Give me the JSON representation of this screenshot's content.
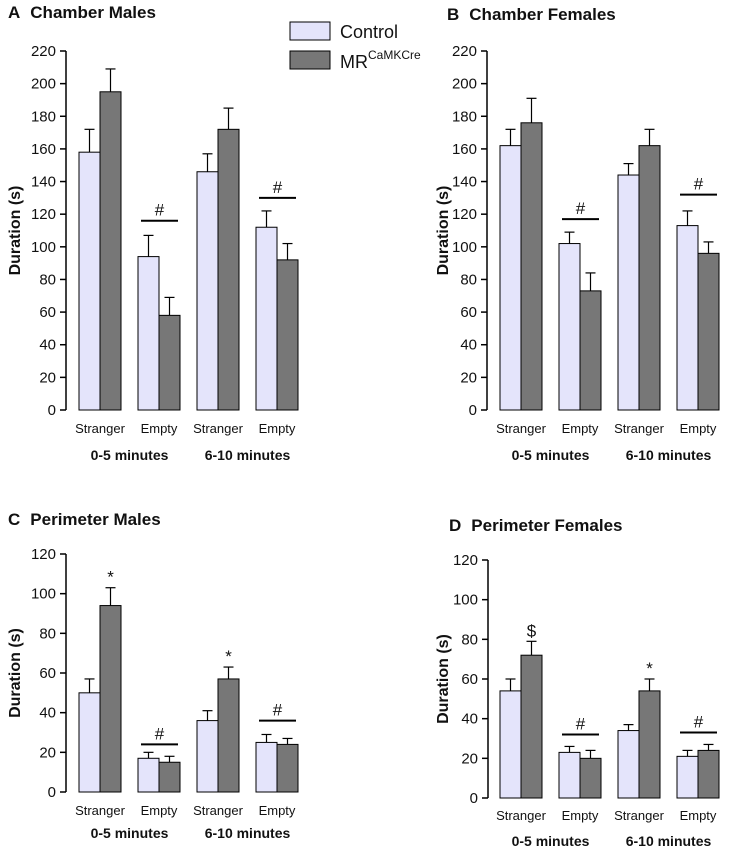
{
  "legend": {
    "control_label": "Control",
    "mr_label_base": "MR",
    "mr_label_sup": "CaMKCre",
    "colors": {
      "control": "#e4e4fb",
      "mr": "#777777"
    }
  },
  "chart_data": [
    {
      "type": "bar",
      "panel_letter": "A",
      "title": "Chamber Males",
      "ylabel": "Duration (s)",
      "ylim": [
        0,
        220
      ],
      "yticks": [
        "0",
        "20",
        "40",
        "60",
        "80",
        "100",
        "120",
        "140",
        "160",
        "180",
        "200",
        "220"
      ],
      "categories": [
        "Stranger",
        "Empty",
        "Stranger",
        "Empty"
      ],
      "groups": [
        "0-5 minutes",
        "6-10 minutes"
      ],
      "series": [
        {
          "name": "Control",
          "values": [
            158,
            94,
            146,
            112
          ],
          "errors": [
            14,
            13,
            11,
            10
          ]
        },
        {
          "name": "MR CaMKCre",
          "values": [
            195,
            58,
            172,
            92
          ],
          "errors": [
            14,
            11,
            13,
            10
          ]
        }
      ],
      "annotations": [
        {
          "type": "line",
          "category": 1,
          "value": 116,
          "label": "#"
        },
        {
          "type": "line",
          "category": 3,
          "value": 130,
          "label": "#"
        }
      ]
    },
    {
      "type": "bar",
      "panel_letter": "B",
      "title": "Chamber Females",
      "ylabel": "Duration (s)",
      "ylim": [
        0,
        220
      ],
      "yticks": [
        "0",
        "20",
        "40",
        "60",
        "80",
        "100",
        "120",
        "140",
        "160",
        "180",
        "200",
        "220"
      ],
      "categories": [
        "Stranger",
        "Empty",
        "Stranger",
        "Empty"
      ],
      "groups": [
        "0-5 minutes",
        "6-10 minutes"
      ],
      "series": [
        {
          "name": "Control",
          "values": [
            162,
            102,
            144,
            113
          ],
          "errors": [
            10,
            7,
            7,
            9
          ]
        },
        {
          "name": "MR CaMKCre",
          "values": [
            176,
            73,
            162,
            96
          ],
          "errors": [
            15,
            11,
            10,
            7
          ]
        }
      ],
      "annotations": [
        {
          "type": "line",
          "category": 1,
          "value": 117,
          "label": "#"
        },
        {
          "type": "line",
          "category": 3,
          "value": 132,
          "label": "#"
        }
      ]
    },
    {
      "type": "bar",
      "panel_letter": "C",
      "title": "Perimeter Males",
      "ylabel": "Duration (s)",
      "ylim": [
        0,
        120
      ],
      "yticks": [
        "0",
        "20",
        "40",
        "60",
        "80",
        "100",
        "120"
      ],
      "categories": [
        "Stranger",
        "Empty",
        "Stranger",
        "Empty"
      ],
      "groups": [
        "0-5 minutes",
        "6-10 minutes"
      ],
      "series": [
        {
          "name": "Control",
          "values": [
            50,
            17,
            36,
            25
          ],
          "errors": [
            7,
            3,
            5,
            4
          ]
        },
        {
          "name": "MR CaMKCre",
          "values": [
            94,
            15,
            57,
            24
          ],
          "errors": [
            9,
            3,
            6,
            3
          ]
        }
      ],
      "annotations": [
        {
          "type": "star",
          "category": 0,
          "series": 1,
          "label": "*"
        },
        {
          "type": "star",
          "category": 2,
          "series": 1,
          "label": "*"
        },
        {
          "type": "line",
          "category": 1,
          "value": 24,
          "label": "#"
        },
        {
          "type": "line",
          "category": 3,
          "value": 36,
          "label": "#"
        }
      ]
    },
    {
      "type": "bar",
      "panel_letter": "D",
      "title": "Perimeter Females",
      "ylabel": "Duration (s)",
      "ylim": [
        0,
        120
      ],
      "yticks": [
        "0",
        "20",
        "40",
        "60",
        "80",
        "100",
        "120"
      ],
      "categories": [
        "Stranger",
        "Empty",
        "Stranger",
        "Empty"
      ],
      "groups": [
        "0-5 minutes",
        "6-10 minutes"
      ],
      "series": [
        {
          "name": "Control",
          "values": [
            54,
            23,
            34,
            21
          ],
          "errors": [
            6,
            3,
            3,
            3
          ]
        },
        {
          "name": "MR CaMKCre",
          "values": [
            72,
            20,
            54,
            24
          ],
          "errors": [
            7,
            4,
            6,
            3
          ]
        }
      ],
      "annotations": [
        {
          "type": "star",
          "category": 0,
          "series": 1,
          "label": "$"
        },
        {
          "type": "star",
          "category": 2,
          "series": 1,
          "label": "*"
        },
        {
          "type": "line",
          "category": 1,
          "value": 32,
          "label": "#"
        },
        {
          "type": "line",
          "category": 3,
          "value": 33,
          "label": "#"
        }
      ]
    }
  ]
}
